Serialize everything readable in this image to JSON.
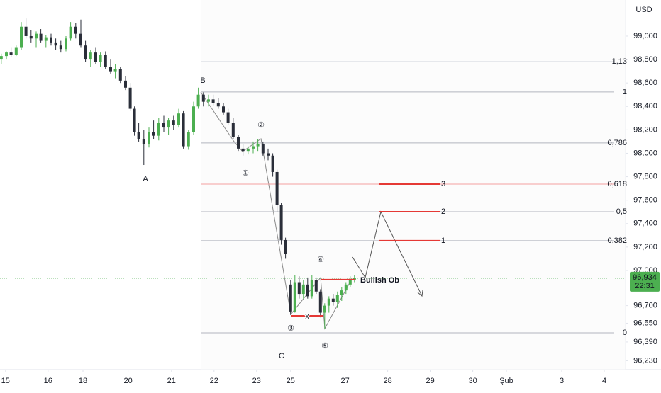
{
  "chart_data": {
    "type": "candlestick",
    "currency": "USD",
    "x": [
      -0.1,
      0.02,
      0.13,
      0.25,
      0.37,
      0.48,
      0.6,
      0.72,
      0.83,
      0.95,
      1.07,
      1.18,
      1.3,
      1.42,
      1.53,
      1.65,
      1.77,
      1.88,
      2,
      2.12,
      2.23,
      2.35,
      2.47,
      2.58,
      2.7,
      2.82,
      2.93,
      3.03,
      3.13,
      3.25,
      3.37,
      3.48,
      3.6,
      3.72,
      3.83,
      3.95,
      4.07,
      4.18,
      4.3,
      4.42,
      4.53,
      4.65,
      4.77,
      4.88,
      5,
      5.12,
      5.23,
      5.35,
      5.47,
      5.58,
      5.7,
      5.82,
      5.93,
      6.05,
      6.17,
      6.28,
      6.38,
      6.48,
      6.58,
      6.7,
      6.8,
      6.9,
      7,
      7.1,
      7.2,
      7.3,
      7.4,
      7.5,
      7.6,
      7.7,
      7.8,
      7.9,
      8,
      8.1,
      8.2
    ],
    "open": [
      98800,
      98830,
      98860,
      98840,
      98900,
      99080,
      99000,
      98980,
      99020,
      98960,
      98990,
      98940,
      98920,
      98890,
      98980,
      99080,
      99020,
      98920,
      98800,
      98860,
      98780,
      98840,
      98740,
      98700,
      98720,
      98620,
      98560,
      98380,
      98180,
      98120,
      98080,
      98180,
      98150,
      98260,
      98220,
      98280,
      98240,
      98340,
      98060,
      98180,
      98400,
      98500,
      98440,
      98460,
      98430,
      98400,
      98350,
      98260,
      98140,
      98040,
      98020,
      98040,
      98060,
      98080,
      98000,
      97980,
      97840,
      97560,
      97260,
      96880,
      96650,
      96900,
      96800,
      96880,
      96780,
      96920,
      96820,
      96640,
      96700,
      96760,
      96730,
      96790,
      96830,
      96880,
      96920
    ],
    "high": [
      98850,
      98870,
      98900,
      98920,
      99120,
      99150,
      99050,
      99040,
      99060,
      99010,
      99020,
      98980,
      98960,
      99000,
      99120,
      99110,
      99140,
      98960,
      98880,
      98900,
      98860,
      98870,
      98800,
      98760,
      98740,
      98660,
      98600,
      98400,
      98260,
      98200,
      98220,
      98280,
      98300,
      98320,
      98300,
      98320,
      98380,
      98360,
      98200,
      98440,
      98560,
      98520,
      98500,
      98500,
      98470,
      98430,
      98380,
      98300,
      98160,
      98080,
      98060,
      98100,
      98120,
      98100,
      98040,
      98000,
      97860,
      97580,
      97280,
      96920,
      96960,
      96950,
      96920,
      96940,
      96960,
      96940,
      96840,
      96720,
      96780,
      96800,
      96820,
      96860,
      96900,
      96950,
      96960
    ],
    "low": [
      98760,
      98800,
      98820,
      98830,
      98880,
      98980,
      98940,
      98900,
      98940,
      98900,
      98920,
      98880,
      98860,
      98870,
      98960,
      98980,
      98900,
      98780,
      98740,
      98760,
      98740,
      98720,
      98680,
      98640,
      98600,
      98540,
      98360,
      98150,
      98100,
      97900,
      98050,
      98120,
      98110,
      98180,
      98160,
      98200,
      98220,
      98040,
      98030,
      98160,
      98380,
      98400,
      98400,
      98410,
      98380,
      98330,
      98240,
      98120,
      98020,
      97980,
      97990,
      98000,
      98020,
      97980,
      97940,
      97800,
      97500,
      97220,
      97100,
      96620,
      96640,
      96760,
      96760,
      96760,
      96760,
      96800,
      96600,
      96500,
      96640,
      96700,
      96680,
      96740,
      96800,
      96860,
      96900
    ],
    "close": [
      98830,
      98860,
      98840,
      98900,
      99080,
      99000,
      98980,
      99020,
      98960,
      98990,
      98940,
      98920,
      98890,
      98980,
      99080,
      99020,
      98920,
      98800,
      98860,
      98780,
      98840,
      98740,
      98700,
      98720,
      98620,
      98560,
      98380,
      98180,
      98120,
      98080,
      98180,
      98150,
      98260,
      98220,
      98280,
      98240,
      98340,
      98060,
      98180,
      98400,
      98500,
      98440,
      98460,
      98430,
      98400,
      98350,
      98260,
      98140,
      98040,
      98020,
      98040,
      98060,
      98080,
      98000,
      97980,
      97840,
      97560,
      97260,
      97140,
      96650,
      96900,
      96800,
      96880,
      96780,
      96920,
      96820,
      96640,
      96700,
      96760,
      96730,
      96790,
      96830,
      96880,
      96920,
      96934
    ],
    "up_color": "#4caf50",
    "down_color": "#2a2e39",
    "xlim": [
      -0.13,
      14.57
    ],
    "xticks": [
      {
        "value": 0,
        "label": "15"
      },
      {
        "value": 1,
        "label": "16"
      },
      {
        "value": 1.82,
        "label": "18"
      },
      {
        "value": 2.88,
        "label": "20"
      },
      {
        "value": 3.9,
        "label": "21"
      },
      {
        "value": 4.9,
        "label": "22"
      },
      {
        "value": 5.9,
        "label": "23"
      },
      {
        "value": 6.7,
        "label": "25"
      },
      {
        "value": 7.98,
        "label": "27"
      },
      {
        "value": 8.98,
        "label": "28"
      },
      {
        "value": 9.98,
        "label": "29"
      },
      {
        "value": 10.98,
        "label": "30"
      },
      {
        "value": 11.77,
        "label": "Şub"
      },
      {
        "value": 13.07,
        "label": "3"
      },
      {
        "value": 14.07,
        "label": "4"
      }
    ],
    "ylim": [
      96166,
      99308
    ],
    "yticks": [
      {
        "value": 99000,
        "label": "99,000"
      },
      {
        "value": 98800,
        "label": "98,800"
      },
      {
        "value": 98600,
        "label": "98,600"
      },
      {
        "value": 98400,
        "label": "98,400"
      },
      {
        "value": 98200,
        "label": "98,200"
      },
      {
        "value": 98000,
        "label": "98,000"
      },
      {
        "value": 97800,
        "label": "97,800"
      },
      {
        "value": 97600,
        "label": "97,600"
      },
      {
        "value": 97400,
        "label": "97,400"
      },
      {
        "value": 97200,
        "label": "97,200"
      },
      {
        "value": 97000,
        "label": "97,000"
      },
      {
        "value": 96700,
        "label": "96,700"
      },
      {
        "value": 96550,
        "label": "96,550"
      },
      {
        "value": 96390,
        "label": "96,390"
      },
      {
        "value": 96230,
        "label": "96,230"
      }
    ],
    "current_price": {
      "value": 96934,
      "label": "96,934"
    },
    "countdown": "22:31",
    "fib_levels": [
      {
        "value": 98782,
        "label": "1,13",
        "color": "#d1d4dc"
      },
      {
        "value": 98523,
        "label": "1",
        "color": "#b2b5be"
      },
      {
        "value": 98088,
        "label": "0,786",
        "color": "#b2b5be"
      },
      {
        "value": 97737,
        "label": "0,618",
        "color": "#f4a0a0"
      },
      {
        "value": 97501,
        "label": "0,5",
        "color": "#b2b5be"
      },
      {
        "value": 97254,
        "label": "0,382",
        "color": "#b2b5be"
      },
      {
        "value": 96468,
        "label": "0",
        "color": "#b2b5be"
      }
    ],
    "targets": [
      {
        "value": 97254,
        "label": "1"
      },
      {
        "value": 97501,
        "label": "2"
      },
      {
        "value": 97737,
        "label": "3"
      }
    ],
    "target_color": "#e53935",
    "bullish_ob": {
      "value": 96922,
      "label": "Bullish Ob"
    },
    "x_level": {
      "value": 96613,
      "label": "x"
    },
    "wave_labels": [
      "A",
      "B",
      "C",
      "①",
      "②",
      "③",
      "④",
      "⑤"
    ]
  }
}
